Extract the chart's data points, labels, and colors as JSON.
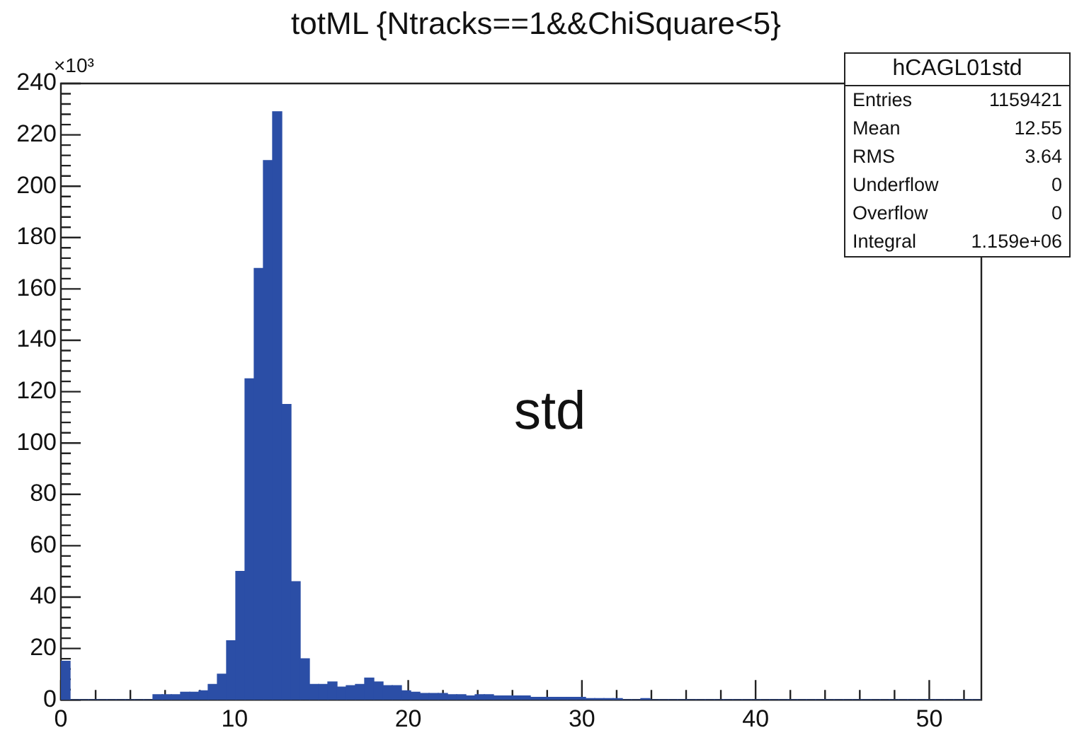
{
  "chart_data": {
    "type": "histogram",
    "title": "totML {Ntracks==1&&ChiSquare<5}",
    "bins": [
      0,
      0.53,
      1.06,
      1.59,
      2.12,
      2.65,
      3.18,
      3.71,
      4.24,
      4.77,
      5.3,
      5.83,
      6.36,
      6.89,
      7.42,
      7.95,
      8.48,
      9.01,
      9.54,
      10.07,
      10.6,
      11.13,
      11.66,
      12.19,
      12.72,
      13.25,
      13.78,
      14.31,
      14.84,
      15.37,
      15.9,
      16.43,
      16.96,
      17.49,
      18.02,
      18.55,
      19.08,
      19.61,
      20.14,
      20.67,
      21.2,
      21.73,
      22.26,
      22.79,
      23.32,
      23.85,
      24.38,
      24.91,
      25.44,
      25.97,
      26.5,
      27.03,
      27.56,
      28.09,
      28.62,
      29.15,
      29.68,
      30.21,
      30.74,
      31.27,
      31.8,
      32.33,
      32.86,
      33.39,
      33.92,
      34.45,
      34.98,
      35.51,
      36.04,
      36.57,
      37.1,
      37.63,
      38.16,
      38.69,
      39.22,
      39.75,
      40.28,
      40.81,
      41.34,
      41.87,
      42.4,
      42.93,
      43.46,
      43.99,
      44.52,
      45.05,
      45.58,
      46.11,
      46.64,
      47.17,
      47.7,
      48.23,
      48.76,
      49.29,
      49.82,
      50.35,
      50.88,
      51.41,
      51.94,
      52.47,
      53
    ],
    "values": [
      15,
      0,
      0,
      0,
      0,
      0,
      0,
      0,
      0,
      0,
      2,
      2,
      2,
      3,
      3,
      3.5,
      6,
      10,
      23,
      50,
      125,
      168,
      210,
      229,
      115,
      46,
      16,
      6,
      6,
      7,
      5,
      5.5,
      6,
      8.5,
      7,
      5.5,
      5.5,
      3.5,
      3,
      2.5,
      2.5,
      2.5,
      2,
      2,
      1.5,
      2,
      2,
      1.5,
      1.5,
      1.5,
      1.5,
      1,
      1,
      1,
      1,
      1,
      1,
      0.5,
      0.5,
      0.5,
      0.5,
      0,
      0,
      0.5,
      0,
      0,
      0,
      0,
      0,
      0,
      0,
      0,
      0,
      0,
      0,
      0,
      0,
      0,
      0,
      0,
      0,
      0,
      0,
      0,
      0,
      0,
      0,
      0,
      0,
      0,
      0,
      0,
      0,
      0,
      0,
      0,
      0,
      0,
      0,
      0
    ],
    "color": "#2b4ea6",
    "xlim": [
      0,
      53
    ],
    "xticks": [
      0,
      {
        "value": 2,
        "label": null
      },
      {
        "value": 4,
        "label": null
      },
      {
        "value": 6,
        "label": null
      },
      {
        "value": 8,
        "label": null
      },
      10,
      {
        "value": 12,
        "label": null
      },
      {
        "value": 14,
        "label": null
      },
      {
        "value": 16,
        "label": null
      },
      {
        "value": 18,
        "label": null
      },
      20,
      {
        "value": 22,
        "label": null
      },
      {
        "value": 24,
        "label": null
      },
      {
        "value": 26,
        "label": null
      },
      {
        "value": 28,
        "label": null
      },
      30,
      {
        "value": 32,
        "label": null
      },
      {
        "value": 34,
        "label": null
      },
      {
        "value": 36,
        "label": null
      },
      {
        "value": 38,
        "label": null
      },
      40,
      {
        "value": 42,
        "label": null
      },
      {
        "value": 44,
        "label": null
      },
      {
        "value": 46,
        "label": null
      },
      {
        "value": 48,
        "label": null
      },
      50,
      {
        "value": 52,
        "label": null
      }
    ],
    "ylim": [
      0,
      240
    ],
    "yticks": [
      0,
      {
        "value": 4,
        "label": null
      },
      {
        "value": 8,
        "label": null
      },
      {
        "value": 12,
        "label": null
      },
      {
        "value": 16,
        "label": null
      },
      20,
      {
        "value": 24,
        "label": null
      },
      {
        "value": 28,
        "label": null
      },
      {
        "value": 32,
        "label": null
      },
      {
        "value": 36,
        "label": null
      },
      40,
      {
        "value": 44,
        "label": null
      },
      {
        "value": 48,
        "label": null
      },
      {
        "value": 52,
        "label": null
      },
      {
        "value": 56,
        "label": null
      },
      60,
      {
        "value": 64,
        "label": null
      },
      {
        "value": 68,
        "label": null
      },
      {
        "value": 72,
        "label": null
      },
      {
        "value": 76,
        "label": null
      },
      80,
      {
        "value": 84,
        "label": null
      },
      {
        "value": 88,
        "label": null
      },
      {
        "value": 92,
        "label": null
      },
      {
        "value": 96,
        "label": null
      },
      100,
      {
        "value": 104,
        "label": null
      },
      {
        "value": 108,
        "label": null
      },
      {
        "value": 112,
        "label": null
      },
      {
        "value": 116,
        "label": null
      },
      120,
      {
        "value": 124,
        "label": null
      },
      {
        "value": 128,
        "label": null
      },
      {
        "value": 132,
        "label": null
      },
      {
        "value": 136,
        "label": null
      },
      140,
      {
        "value": 144,
        "label": null
      },
      {
        "value": 148,
        "label": null
      },
      {
        "value": 152,
        "label": null
      },
      {
        "value": 156,
        "label": null
      },
      160,
      {
        "value": 164,
        "label": null
      },
      {
        "value": 168,
        "label": null
      },
      {
        "value": 172,
        "label": null
      },
      {
        "value": 176,
        "label": null
      },
      180,
      {
        "value": 184,
        "label": null
      },
      {
        "value": 188,
        "label": null
      },
      {
        "value": 192,
        "label": null
      },
      {
        "value": 196,
        "label": null
      },
      200,
      {
        "value": 204,
        "label": null
      },
      {
        "value": 208,
        "label": null
      },
      {
        "value": 212,
        "label": null
      },
      {
        "value": 216,
        "label": null
      },
      220,
      {
        "value": 224,
        "label": null
      },
      {
        "value": 228,
        "label": null
      },
      {
        "value": 232,
        "label": null
      },
      {
        "value": 236,
        "label": null
      },
      240
    ],
    "grid": false,
    "legend": false,
    "annotations": [
      "×10³",
      "std",
      "hCAGL01std",
      "Entries 1159421",
      "Mean 12.55",
      "RMS 3.64",
      "Underflow 0",
      "Overflow 0",
      "Integral 1.159e+06"
    ]
  }
}
